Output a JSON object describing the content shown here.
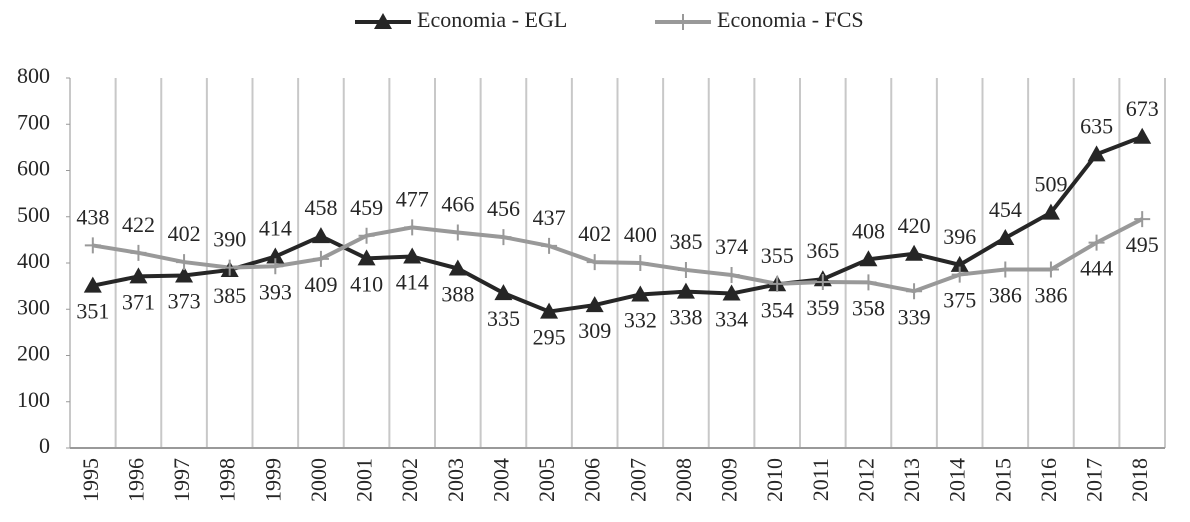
{
  "chart_data": {
    "type": "line",
    "categories": [
      "1995",
      "1996",
      "1997",
      "1998",
      "1999",
      "2000",
      "2001",
      "2002",
      "2003",
      "2004",
      "2005",
      "2006",
      "2007",
      "2008",
      "2009",
      "2010",
      "2011",
      "2012",
      "2013",
      "2014",
      "2015",
      "2016",
      "2017",
      "2018"
    ],
    "series": [
      {
        "name": "Economia - EGL",
        "color": "#262626",
        "marker": "triangle",
        "values": [
          351,
          371,
          373,
          385,
          414,
          458,
          410,
          414,
          388,
          335,
          295,
          309,
          332,
          338,
          334,
          354,
          365,
          408,
          420,
          396,
          454,
          509,
          635,
          673
        ]
      },
      {
        "name": "Economia - FCS",
        "color": "#999999",
        "marker": "plus",
        "values": [
          438,
          422,
          402,
          390,
          393,
          409,
          459,
          477,
          466,
          456,
          437,
          402,
          400,
          385,
          374,
          355,
          359,
          358,
          339,
          375,
          386,
          386,
          444,
          495
        ]
      }
    ],
    "ylim": [
      0,
      800
    ],
    "yticks": [
      0,
      100,
      200,
      300,
      400,
      500,
      600,
      700,
      800
    ],
    "grid": true,
    "legend": "top"
  }
}
